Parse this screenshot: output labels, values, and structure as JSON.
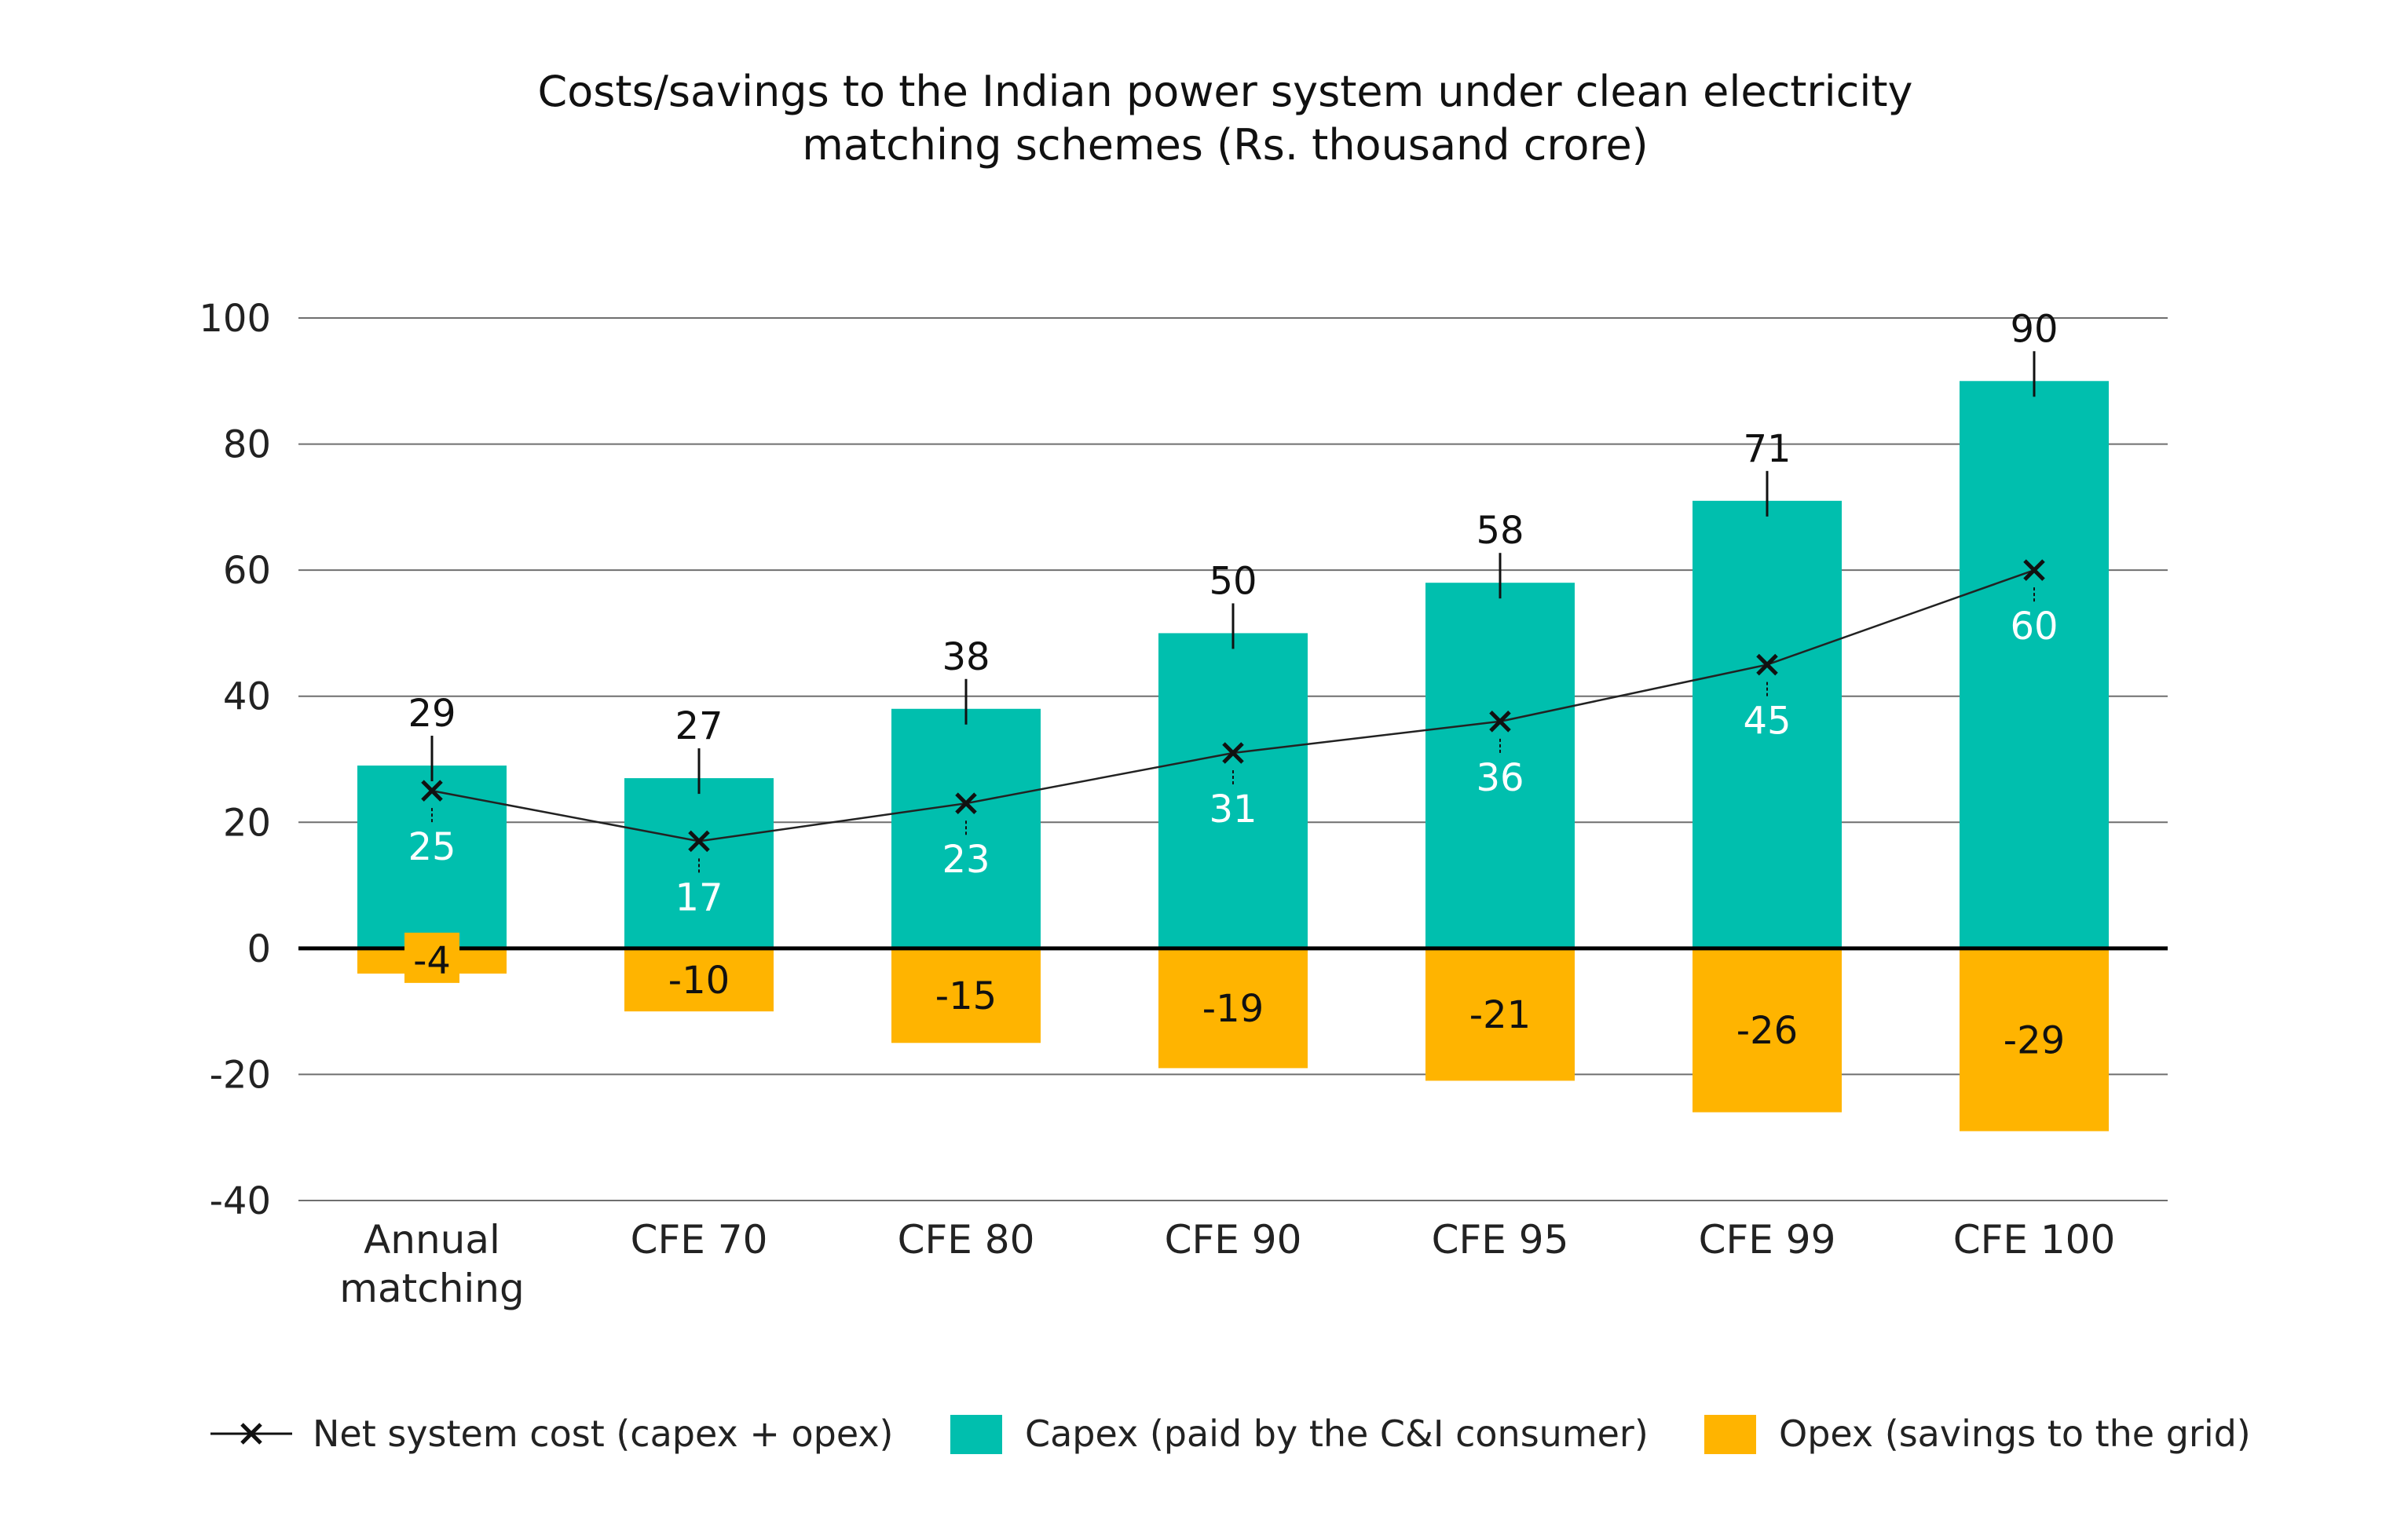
{
  "chart_data": {
    "type": "bar",
    "title_lines": [
      "Costs/savings to the Indian power system under clean electricity",
      "matching schemes (Rs. thousand crore)"
    ],
    "categories": [
      [
        "Annual",
        "matching"
      ],
      [
        "CFE 70"
      ],
      [
        "CFE 80"
      ],
      [
        "CFE 90"
      ],
      [
        "CFE 95"
      ],
      [
        "CFE 99"
      ],
      [
        "CFE 100"
      ]
    ],
    "ylim": [
      -40,
      100
    ],
    "yticks": [
      "100",
      "80",
      "60",
      "40",
      "20",
      "0",
      "-20",
      "-40"
    ],
    "ytick_values": [
      100,
      80,
      60,
      40,
      20,
      0,
      -20,
      -40
    ],
    "grid": true,
    "legend_position": "bottom",
    "series": [
      {
        "name": "Capex (paid by the C&I consumer)",
        "kind": "bar",
        "color": "#00BFAE",
        "values": [
          29,
          27,
          38,
          50,
          58,
          71,
          90
        ],
        "labels": [
          "29",
          "27",
          "38",
          "50",
          "58",
          "71",
          "90"
        ]
      },
      {
        "name": "Opex (savings to the grid)",
        "kind": "bar",
        "color": "#FFB400",
        "values": [
          -4,
          -10,
          -15,
          -19,
          -21,
          -26,
          -29
        ],
        "labels": [
          "-4",
          "-10",
          "-15",
          "-19",
          "-21",
          "-26",
          "-29"
        ]
      },
      {
        "name": "Net system cost (capex + opex)",
        "kind": "line",
        "color": "#222222",
        "marker": "x",
        "values": [
          25,
          17,
          23,
          31,
          36,
          45,
          60
        ],
        "labels": [
          "25",
          "17",
          "23",
          "31",
          "36",
          "45",
          "60"
        ]
      }
    ]
  }
}
